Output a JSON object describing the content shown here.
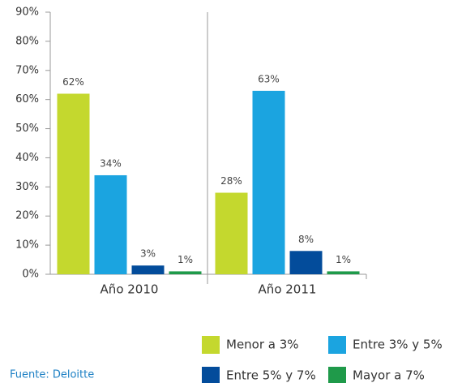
{
  "chart_data": {
    "type": "bar",
    "categories": [
      "Año 2010",
      "Año 2011"
    ],
    "series": [
      {
        "name": "Menor a 3%",
        "color": "#c4d82e",
        "values": [
          62,
          28
        ],
        "value_labels": [
          "62%",
          "28%"
        ]
      },
      {
        "name": "Entre 3% y 5%",
        "color": "#1ba4e0",
        "values": [
          34,
          63
        ],
        "value_labels": [
          "34%",
          "63%"
        ]
      },
      {
        "name": "Entre 5% y 7%",
        "color": "#034c9b",
        "values": [
          3,
          8
        ],
        "value_labels": [
          "3%",
          "8%"
        ]
      },
      {
        "name": "Mayor a 7%",
        "color": "#1f9a4a",
        "values": [
          1,
          1
        ],
        "value_labels": [
          "1%",
          "1%"
        ]
      }
    ],
    "ylim": [
      0,
      90
    ],
    "yticks": [
      {
        "value": 0,
        "label": "0%"
      },
      {
        "value": 10,
        "label": "10%"
      },
      {
        "value": 20,
        "label": "20%"
      },
      {
        "value": 30,
        "label": "30%"
      },
      {
        "value": 40,
        "label": "40%"
      },
      {
        "value": 50,
        "label": "50%"
      },
      {
        "value": 60,
        "label": "60%"
      },
      {
        "value": 70,
        "label": "70%"
      },
      {
        "value": 80,
        "label": "80%"
      },
      {
        "value": 90,
        "label": "90%"
      }
    ],
    "source": "Fuente: Deloitte"
  }
}
